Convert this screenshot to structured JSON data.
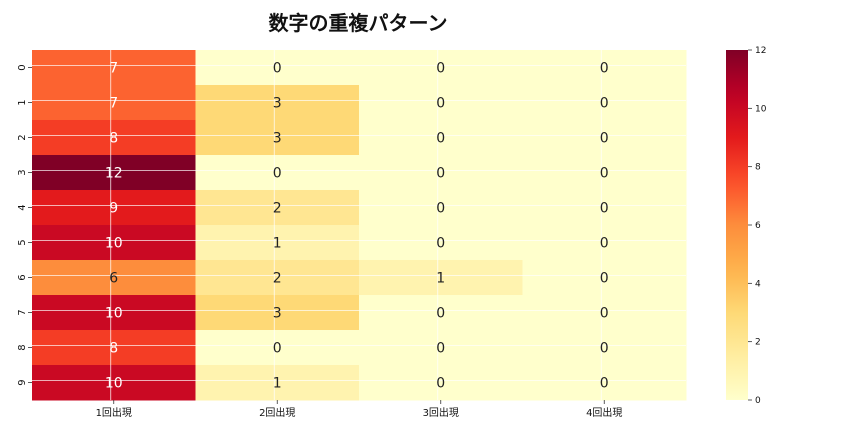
{
  "chart_data": {
    "type": "heatmap",
    "title": "数字の重複パターン",
    "xlabel": "",
    "ylabel": "",
    "x_categories": [
      "1回出現",
      "2回出現",
      "3回出現",
      "4回出現"
    ],
    "y_categories": [
      "0",
      "1",
      "2",
      "3",
      "4",
      "5",
      "6",
      "7",
      "8",
      "9"
    ],
    "values": [
      [
        7,
        0,
        0,
        0
      ],
      [
        7,
        3,
        0,
        0
      ],
      [
        8,
        3,
        0,
        0
      ],
      [
        12,
        0,
        0,
        0
      ],
      [
        9,
        2,
        0,
        0
      ],
      [
        10,
        1,
        0,
        0
      ],
      [
        6,
        2,
        1,
        0
      ],
      [
        10,
        3,
        0,
        0
      ],
      [
        8,
        0,
        0,
        0
      ],
      [
        10,
        1,
        0,
        0
      ]
    ],
    "colormap": "YlOrRd",
    "vmin": 0,
    "vmax": 12,
    "colorbar_ticks": [
      "0",
      "2",
      "4",
      "6",
      "8",
      "10",
      "12"
    ],
    "annotations": true,
    "grid": true,
    "colors": {
      "low": "#ffffcc",
      "high": "#800026"
    }
  }
}
